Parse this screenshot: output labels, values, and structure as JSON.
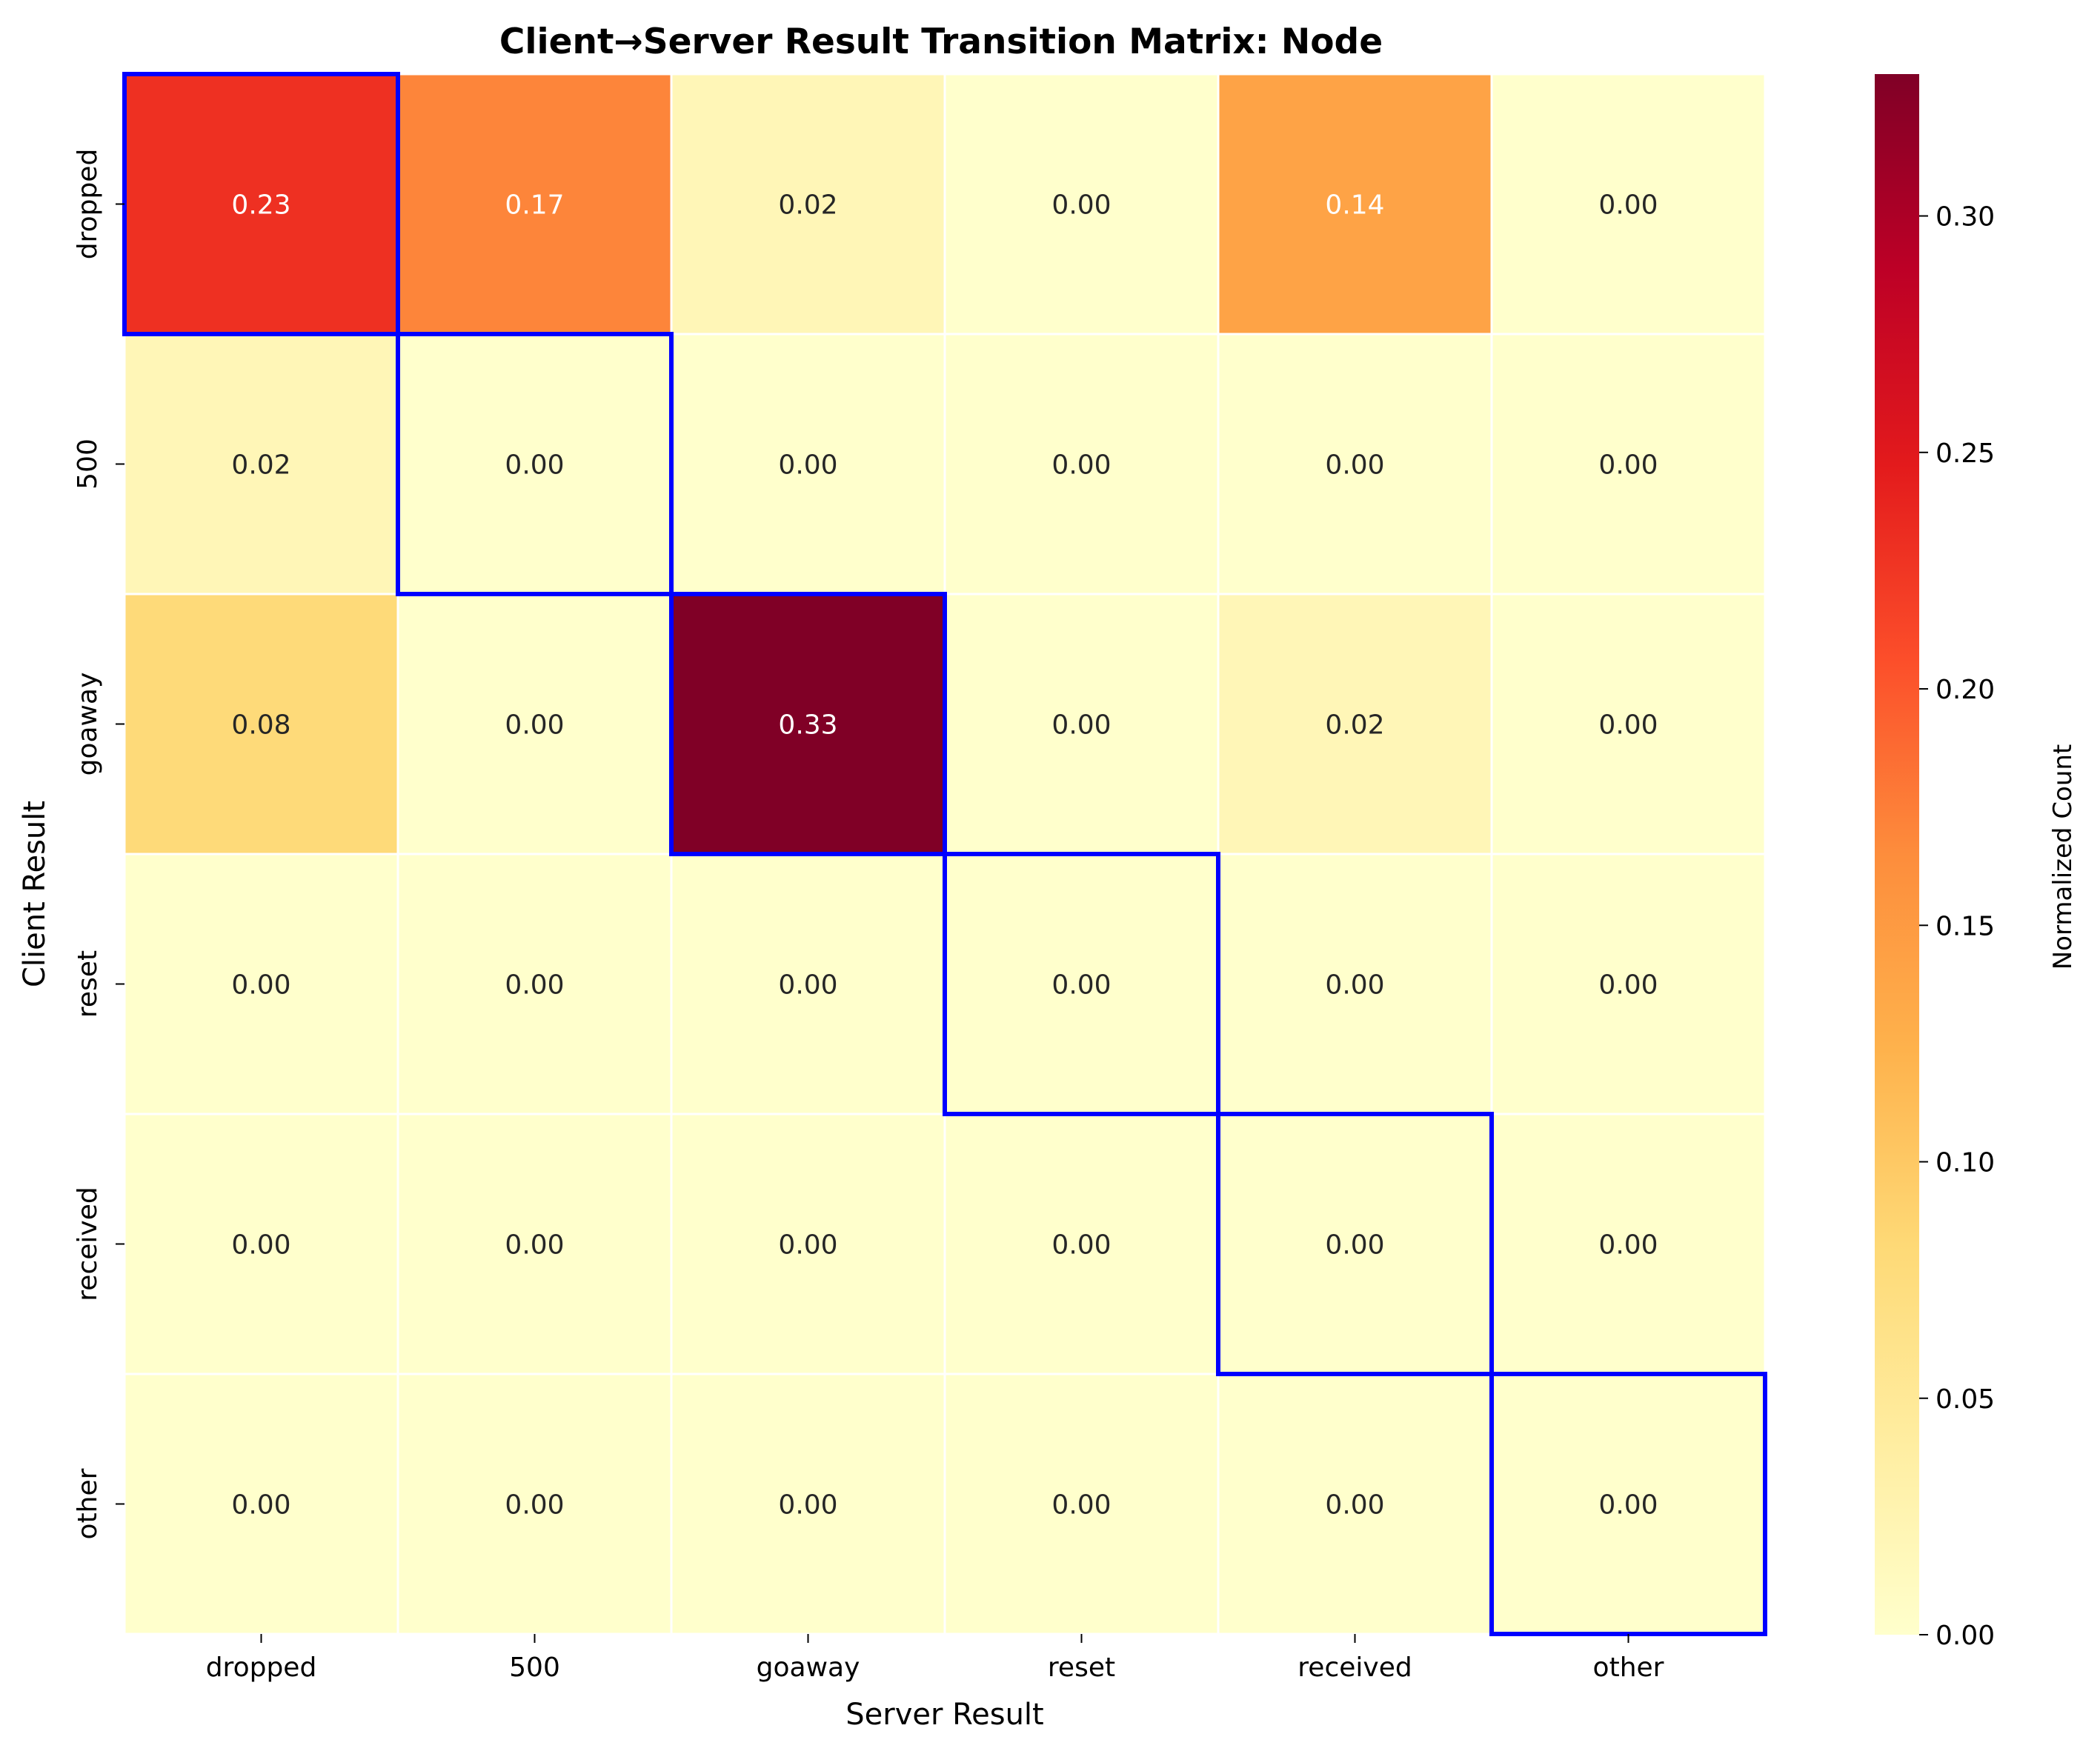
{
  "chart_data": {
    "type": "heatmap",
    "title": "Client→Server Result Transition Matrix: Node",
    "xlabel": "Server Result",
    "ylabel": "Client Result",
    "x_categories": [
      "dropped",
      "500",
      "goaway",
      "reset",
      "received",
      "other"
    ],
    "y_categories": [
      "dropped",
      "500",
      "goaway",
      "reset",
      "received",
      "other"
    ],
    "values": [
      [
        0.23,
        0.17,
        0.02,
        0.0,
        0.14,
        0.0
      ],
      [
        0.02,
        0.0,
        0.0,
        0.0,
        0.0,
        0.0
      ],
      [
        0.08,
        0.0,
        0.33,
        0.0,
        0.02,
        0.0
      ],
      [
        0.0,
        0.0,
        0.0,
        0.0,
        0.0,
        0.0
      ],
      [
        0.0,
        0.0,
        0.0,
        0.0,
        0.0,
        0.0
      ],
      [
        0.0,
        0.0,
        0.0,
        0.0,
        0.0,
        0.0
      ]
    ],
    "cell_labels": [
      [
        "0.23",
        "0.17",
        "0.02",
        "0.00",
        "0.14",
        "0.00"
      ],
      [
        "0.02",
        "0.00",
        "0.00",
        "0.00",
        "0.00",
        "0.00"
      ],
      [
        "0.08",
        "0.00",
        "0.33",
        "0.00",
        "0.02",
        "0.00"
      ],
      [
        "0.00",
        "0.00",
        "0.00",
        "0.00",
        "0.00",
        "0.00"
      ],
      [
        "0.00",
        "0.00",
        "0.00",
        "0.00",
        "0.00",
        "0.00"
      ],
      [
        "0.00",
        "0.00",
        "0.00",
        "0.00",
        "0.00",
        "0.00"
      ]
    ],
    "highlighted_cells": "diagonal",
    "highlight_color": "#0000ff",
    "colormap": "YlOrRd",
    "colorbar": {
      "label": "Normalized Count",
      "range": [
        0,
        0.33
      ],
      "ticks": [
        0.0,
        0.05,
        0.1,
        0.15,
        0.2,
        0.25,
        0.3
      ],
      "tick_labels": [
        "0.00",
        "0.05",
        "0.10",
        "0.15",
        "0.20",
        "0.25",
        "0.30"
      ]
    }
  }
}
